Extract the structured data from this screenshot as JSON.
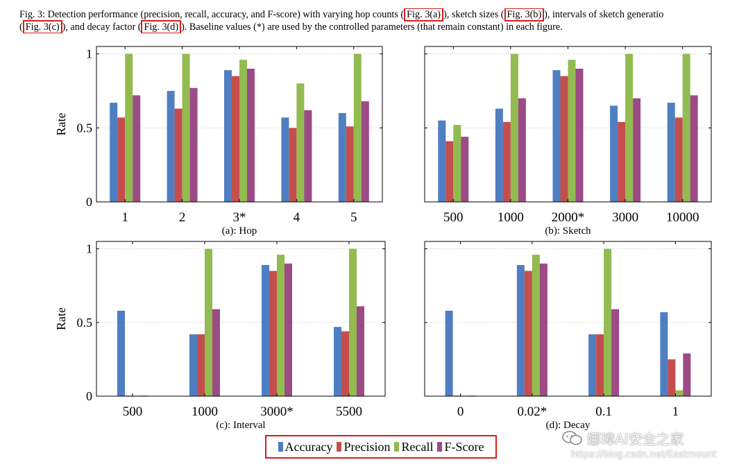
{
  "caption": {
    "segments": [
      {
        "text": "Fig. 3: Detection performance (precision, recall, accuracy, and F-score) with varying hop counts (",
        "ref": false
      },
      {
        "text": "Fig. 3(a)",
        "ref": true
      },
      {
        "text": "), sketch sizes (",
        "ref": false
      },
      {
        "text": "Fig. 3(b)",
        "ref": true
      },
      {
        "text": "), intervals of sketch generatio",
        "ref": false
      }
    ],
    "segments2": [
      {
        "text": "(",
        "ref": false
      },
      {
        "text": "Fig. 3(c)",
        "ref": true
      },
      {
        "text": "), and decay factor (",
        "ref": false
      },
      {
        "text": "Fig. 3(d)",
        "ref": true
      },
      {
        "text": "). Baseline values (*) are used by the controlled parameters (that remain constant) in each figure.",
        "ref": false
      }
    ]
  },
  "legend": [
    {
      "name": "Accuracy",
      "color": "#4f7fc2"
    },
    {
      "name": "Precision",
      "color": "#c44e4e"
    },
    {
      "name": "Recall",
      "color": "#92bb50"
    },
    {
      "name": "F-Score",
      "color": "#9c4b86"
    }
  ],
  "watermark": {
    "line1": "娜璋AI安全之家",
    "line2": "https://blog.csdn.net/Eastmount",
    "icon": "wechat-icon"
  },
  "chart_data": [
    {
      "type": "bar",
      "id": "a",
      "caption": "(a): Hop",
      "ylabel": "Rate",
      "ylim": [
        0,
        1.05
      ],
      "yticks": [
        "0",
        "0.5",
        "1"
      ],
      "categories": [
        "1",
        "2",
        "3*",
        "4",
        "5"
      ],
      "series": [
        {
          "name": "Accuracy",
          "values": [
            0.67,
            0.75,
            0.89,
            0.57,
            0.6
          ]
        },
        {
          "name": "Precision",
          "values": [
            0.57,
            0.63,
            0.85,
            0.5,
            0.51
          ]
        },
        {
          "name": "Recall",
          "values": [
            1.0,
            1.0,
            0.96,
            0.8,
            1.0
          ]
        },
        {
          "name": "F-Score",
          "values": [
            0.72,
            0.77,
            0.9,
            0.62,
            0.68
          ]
        }
      ]
    },
    {
      "type": "bar",
      "id": "b",
      "caption": "(b): Sketch",
      "ylabel": "",
      "ylim": [
        0,
        1.05
      ],
      "yticks": [
        "",
        "",
        ""
      ],
      "categories": [
        "500",
        "1000",
        "2000*",
        "3000",
        "10000"
      ],
      "series": [
        {
          "name": "Accuracy",
          "values": [
            0.55,
            0.63,
            0.89,
            0.65,
            0.67
          ]
        },
        {
          "name": "Precision",
          "values": [
            0.41,
            0.54,
            0.85,
            0.54,
            0.57
          ]
        },
        {
          "name": "Recall",
          "values": [
            0.52,
            1.0,
            0.96,
            1.0,
            1.0
          ]
        },
        {
          "name": "F-Score",
          "values": [
            0.44,
            0.7,
            0.9,
            0.7,
            0.72
          ]
        }
      ]
    },
    {
      "type": "bar",
      "id": "c",
      "caption": "(c): Interval",
      "ylabel": "Rate",
      "ylim": [
        0,
        1.05
      ],
      "yticks": [
        "0",
        "0.5",
        "1"
      ],
      "categories": [
        "500",
        "1000",
        "3000*",
        "5500"
      ],
      "series": [
        {
          "name": "Accuracy",
          "values": [
            0.58,
            0.42,
            0.89,
            0.47
          ]
        },
        {
          "name": "Precision",
          "values": [
            0.0,
            0.42,
            0.85,
            0.44
          ]
        },
        {
          "name": "Recall",
          "values": [
            0.0,
            1.0,
            0.96,
            1.0
          ]
        },
        {
          "name": "F-Score",
          "values": [
            0.0,
            0.59,
            0.9,
            0.61
          ]
        }
      ]
    },
    {
      "type": "bar",
      "id": "d",
      "caption": "(d): Decay",
      "ylabel": "",
      "ylim": [
        0,
        1.05
      ],
      "yticks": [
        "",
        "",
        ""
      ],
      "categories": [
        "0",
        "0.02*",
        "0.1",
        "1"
      ],
      "series": [
        {
          "name": "Accuracy",
          "values": [
            0.58,
            0.89,
            0.42,
            0.57
          ]
        },
        {
          "name": "Precision",
          "values": [
            0.0,
            0.85,
            0.42,
            0.25
          ]
        },
        {
          "name": "Recall",
          "values": [
            0.0,
            0.96,
            1.0,
            0.04
          ]
        },
        {
          "name": "F-Score",
          "values": [
            0.0,
            0.9,
            0.59,
            0.29
          ]
        }
      ]
    }
  ]
}
